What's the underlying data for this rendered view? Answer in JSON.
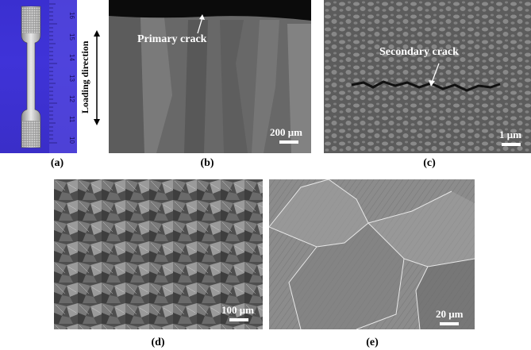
{
  "panels": {
    "a": {
      "caption": "(a)",
      "side_label": "Loading direction",
      "ruler_numbers": [
        "10",
        "11",
        "12",
        "13",
        "14",
        "15",
        "16"
      ]
    },
    "b": {
      "caption": "(b)",
      "annotation": "Primary crack",
      "scale": "200 μm"
    },
    "c": {
      "caption": "(c)",
      "annotation": "Secondary crack",
      "scale": "1 μm"
    },
    "d": {
      "caption": "(d)",
      "scale": "100 μm"
    },
    "e": {
      "caption": "(e)",
      "scale": "20 μm"
    }
  },
  "colors": {
    "panel_a_background": "#3a2fd0",
    "label_text": "#000000",
    "overlay_text": "#ffffff"
  }
}
